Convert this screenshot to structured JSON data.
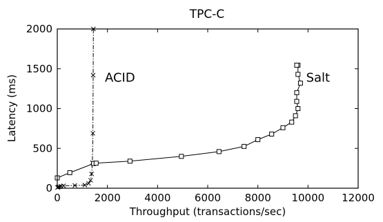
{
  "chart_data": {
    "type": "line",
    "title": "TPC-C",
    "xlabel": "Throughput (transactions/sec)",
    "ylabel": "Latency (ms)",
    "xlim": [
      0,
      12000
    ],
    "ylim": [
      0,
      2000
    ],
    "xticks": [
      0,
      2000,
      4000,
      6000,
      8000,
      10000,
      12000
    ],
    "yticks": [
      0,
      500,
      1000,
      1500,
      2000
    ],
    "xtick_labels": [
      "0",
      "2000",
      "4000",
      "6000",
      "8000",
      "10000",
      "12000"
    ],
    "ytick_labels": [
      "0",
      "500",
      "1000",
      "1500",
      "2000"
    ],
    "grid": false,
    "legend": "none",
    "annotations": [
      {
        "text": "ACID",
        "x": 2500,
        "y": 1400
      },
      {
        "text": "Salt",
        "x": 10400,
        "y": 1400
      }
    ],
    "series": [
      {
        "name": "ACID",
        "marker": "x",
        "line": "dash-dot",
        "x": [
          10,
          40,
          80,
          150,
          250,
          700,
          1100,
          1250,
          1330,
          1370,
          1400,
          1420,
          1430,
          1440
        ],
        "y": [
          10,
          15,
          20,
          25,
          30,
          35,
          40,
          60,
          100,
          180,
          320,
          690,
          1420,
          2000
        ]
      },
      {
        "name": "Salt",
        "marker": "square",
        "line": "solid",
        "x": [
          0,
          500,
          1450,
          1550,
          2900,
          4950,
          6450,
          7450,
          8000,
          8550,
          9000,
          9350,
          9500,
          9600,
          9550,
          9550,
          9700,
          9600,
          9600,
          9550
        ],
        "y": [
          130,
          195,
          310,
          315,
          340,
          400,
          460,
          525,
          610,
          680,
          760,
          830,
          910,
          1000,
          1090,
          1200,
          1320,
          1430,
          1545,
          1545
        ]
      }
    ]
  }
}
